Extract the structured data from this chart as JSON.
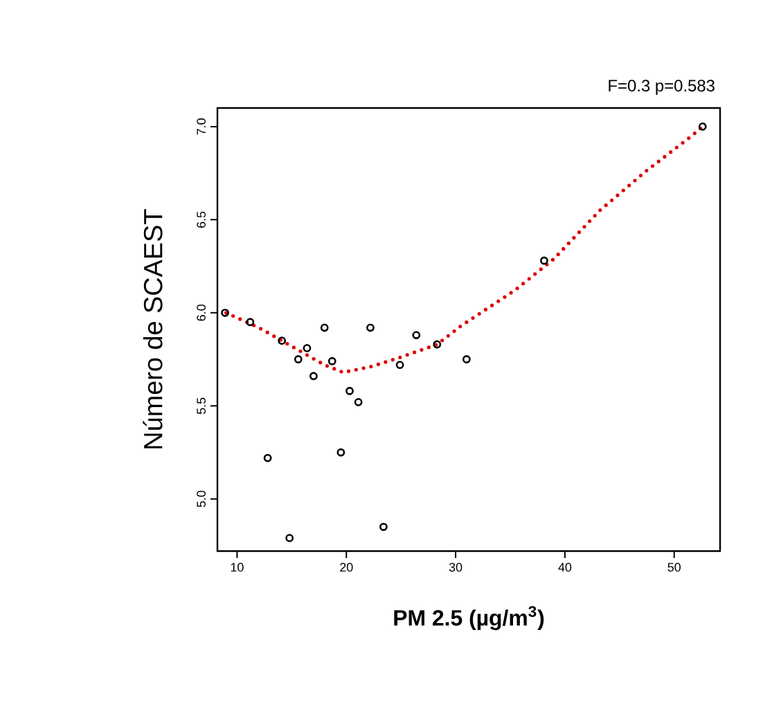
{
  "chart_data": {
    "type": "scatter",
    "annotations": [
      "F=0.3 p=0.583"
    ],
    "xlabel": "PM 2.5 (µg/m$^{3}$)",
    "ylabel": "Número de SCAEST",
    "xlim": [
      8.2,
      54.2
    ],
    "ylim": [
      4.72,
      7.1
    ],
    "xticks": [
      10,
      20,
      30,
      40,
      50
    ],
    "yticks": [
      {
        "value": 5.0,
        "label": "5.0"
      },
      {
        "value": 5.5,
        "label": "5.5"
      },
      {
        "value": 6.0,
        "label": "6.0"
      },
      {
        "value": 6.5,
        "label": "6.5"
      },
      {
        "value": 7.0,
        "label": "7.0"
      }
    ],
    "series": [
      {
        "type": "scatter",
        "color": "#000000",
        "marker": "circle",
        "x": [
          8.9,
          11.2,
          14.1,
          12.8,
          14.8,
          15.6,
          16.4,
          17.0,
          18.0,
          18.7,
          19.5,
          20.3,
          21.1,
          22.2,
          23.4,
          24.9,
          26.4,
          28.3,
          31.0,
          38.1,
          52.6
        ],
        "values": [
          6.0,
          5.95,
          5.85,
          5.22,
          4.79,
          5.75,
          5.81,
          5.66,
          5.92,
          5.74,
          5.25,
          5.58,
          5.52,
          5.92,
          4.85,
          5.72,
          5.88,
          5.83,
          5.75,
          6.28,
          7.0
        ]
      },
      {
        "type": "line",
        "color": "#dd0000",
        "line_style": "dotted",
        "marker": "none",
        "x": [
          9.0,
          12.0,
          15.0,
          18.0,
          19.7,
          22.2,
          24.9,
          28.3,
          30.5,
          35.4,
          39.0,
          43.2,
          47.4,
          51.6,
          52.6
        ],
        "values": [
          6.0,
          5.92,
          5.82,
          5.72,
          5.68,
          5.71,
          5.76,
          5.83,
          5.93,
          6.12,
          6.29,
          6.55,
          6.76,
          6.95,
          7.0
        ]
      }
    ]
  }
}
